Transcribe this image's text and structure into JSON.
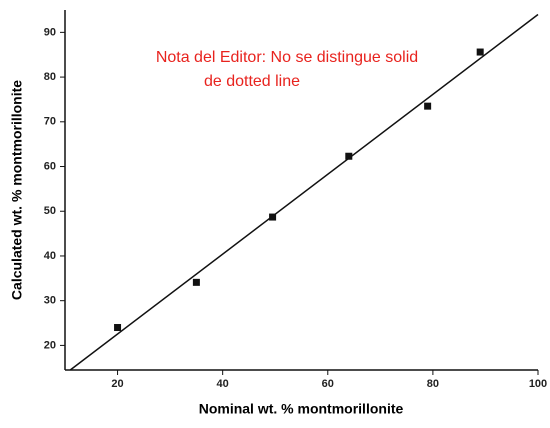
{
  "chart_data": {
    "type": "scatter",
    "x_label": "Nominal wt. % montmorillonite",
    "y_label": "Calculated wt. % montmorillonite",
    "annotation": [
      "Nota del Editor: No se distingue solid",
      "de dotted line"
    ],
    "xlim": [
      10,
      100
    ],
    "ylim": [
      14.5,
      95
    ],
    "xticks": [
      20,
      40,
      60,
      80,
      100
    ],
    "yticks": [
      20,
      30,
      40,
      50,
      60,
      70,
      80,
      90
    ],
    "series": [
      {
        "mode": "markers",
        "color": "#111111",
        "x": [
          20,
          35,
          49.5,
          64,
          79,
          89
        ],
        "values": [
          24,
          34.1,
          48.7,
          62.3,
          73.5,
          85.6
        ]
      },
      {
        "mode": "line",
        "color": "#111111",
        "x": [
          11,
          100
        ],
        "values": [
          14.5,
          94
        ]
      }
    ]
  }
}
